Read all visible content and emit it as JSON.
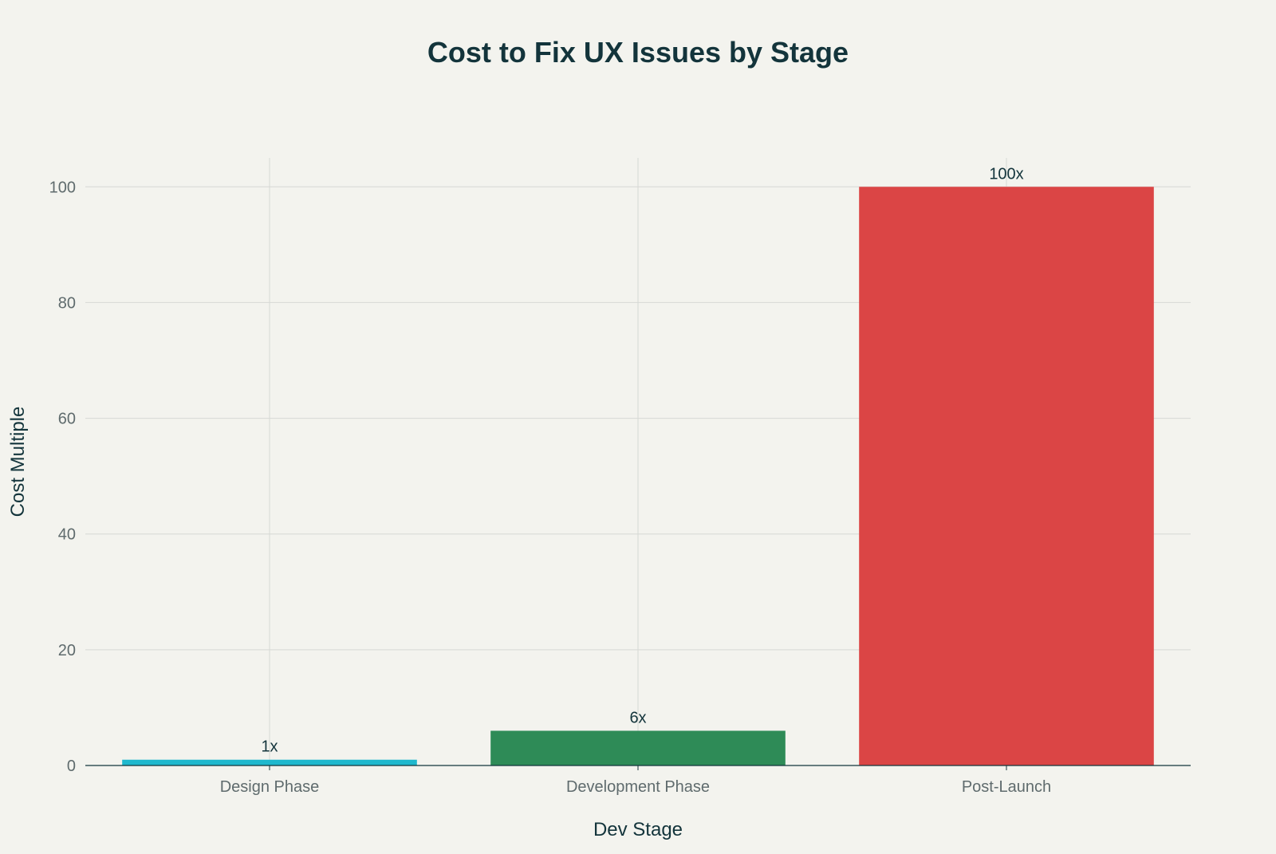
{
  "chart_data": {
    "type": "bar",
    "title": "Cost to Fix UX Issues by Stage",
    "xlabel": "Dev Stage",
    "ylabel": "Cost Multiple",
    "categories": [
      "Design Phase",
      "Development Phase",
      "Post-Launch"
    ],
    "values": [
      1,
      6,
      100
    ],
    "data_labels": [
      "1x",
      "6x",
      "100x"
    ],
    "colors": [
      "#1fb8cd",
      "#2e8b57",
      "#db4545"
    ],
    "ylim": [
      0,
      105
    ],
    "yticks": [
      0,
      20,
      40,
      60,
      80,
      100
    ],
    "grid": true,
    "legend": "none"
  }
}
